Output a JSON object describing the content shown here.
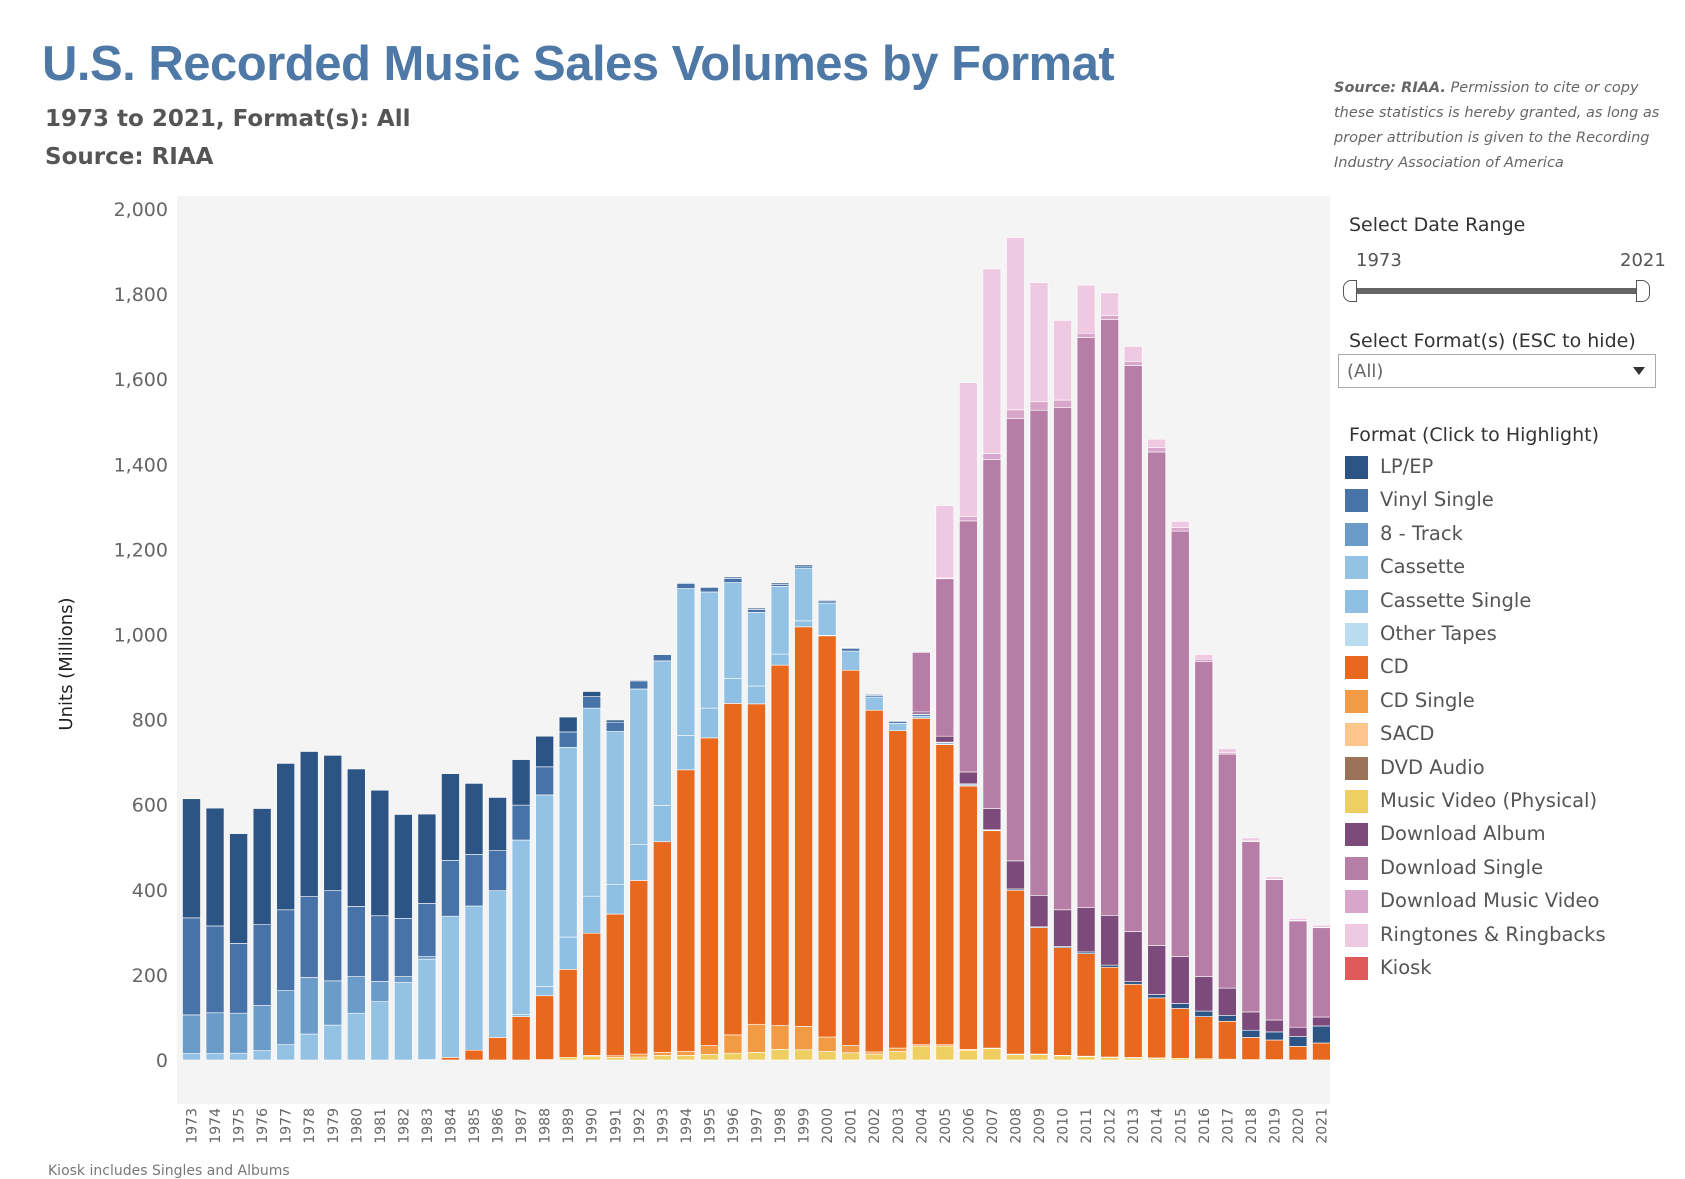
{
  "header": {
    "title": "U.S. Recorded Music Sales Volumes by Format",
    "subtitle": "1973 to 2021, Format(s): All",
    "source": "Source: RIAA"
  },
  "source_note": {
    "bold": "Source: RIAA.",
    "text": " Permission to cite or copy these statistics is hereby granted, as long as proper attribution is given to the Recording Industry Association of America"
  },
  "date_range": {
    "label": "Select Date Range",
    "start": "1973",
    "end": "2021"
  },
  "format_filter": {
    "label": "Select Format(s) (ESC to hide)",
    "value": "(All)"
  },
  "legend": {
    "title": "Format (Click to Highlight)",
    "items": [
      {
        "label": "LP/EP",
        "color": "#2c5585"
      },
      {
        "label": "Vinyl Single",
        "color": "#4773a8"
      },
      {
        "label": "8 - Track",
        "color": "#6a9bc9"
      },
      {
        "label": "Cassette",
        "color": "#93c2e4"
      },
      {
        "label": "Cassette Single",
        "color": "#8fbfe2"
      },
      {
        "label": "Other Tapes",
        "color": "#b9dcf0"
      },
      {
        "label": "CD",
        "color": "#e8691e"
      },
      {
        "label": "CD Single",
        "color": "#f39a45"
      },
      {
        "label": "SACD",
        "color": "#fbc58c"
      },
      {
        "label": "DVD Audio",
        "color": "#9a7258"
      },
      {
        "label": "Music Video (Physical)",
        "color": "#f0cf62"
      },
      {
        "label": "Download Album",
        "color": "#7d4a7c"
      },
      {
        "label": "Download Single",
        "color": "#b67ea6"
      },
      {
        "label": "Download Music Video",
        "color": "#d8a6cb"
      },
      {
        "label": "Ringtones & Ringbacks",
        "color": "#efc8e2"
      },
      {
        "label": "Kiosk",
        "color": "#e05a5a"
      }
    ]
  },
  "footnote": "Kiosk includes Singles and Albums",
  "chart_data": {
    "type": "bar",
    "stacked": true,
    "ylabel": "Units (Millions)",
    "ylim": [
      0,
      2000
    ],
    "yticks": [
      "0",
      "200",
      "400",
      "600",
      "800",
      "1,000",
      "1,200",
      "1,400",
      "1,600",
      "1,800",
      "2,000"
    ],
    "categories": [
      "1973",
      "1974",
      "1975",
      "1976",
      "1977",
      "1978",
      "1979",
      "1980",
      "1981",
      "1982",
      "1983",
      "1984",
      "1985",
      "1986",
      "1987",
      "1988",
      "1989",
      "1990",
      "1991",
      "1992",
      "1993",
      "1994",
      "1995",
      "1996",
      "1997",
      "1998",
      "1999",
      "2000",
      "2001",
      "2002",
      "2003",
      "2004",
      "2005",
      "2006",
      "2007",
      "2008",
      "2009",
      "2010",
      "2011",
      "2012",
      "2013",
      "2014",
      "2015",
      "2016",
      "2017",
      "2018",
      "2019",
      "2020",
      "2021"
    ],
    "series": [
      {
        "name": "Kiosk",
        "values": [
          0,
          0,
          0,
          0,
          0,
          0,
          0,
          0,
          0,
          0,
          0,
          0,
          0,
          0,
          0,
          0,
          0,
          0,
          0,
          0,
          0,
          0,
          0,
          0,
          0,
          0,
          0,
          0,
          0,
          0,
          0,
          0,
          0,
          0,
          0,
          0,
          0,
          0,
          0,
          0,
          0,
          0,
          0,
          0,
          0,
          0,
          0,
          0,
          0
        ]
      },
      {
        "name": "Music Video (Physical)",
        "values": [
          0,
          0,
          0,
          0,
          0,
          0,
          0,
          0,
          0,
          0,
          0,
          0,
          0,
          0,
          0,
          0,
          6,
          9,
          6,
          7,
          11,
          11,
          13,
          16,
          18,
          25,
          24,
          20,
          17,
          14,
          20,
          33,
          33,
          23,
          27,
          13,
          13,
          10,
          8,
          6,
          5,
          4,
          4,
          3,
          2,
          1,
          1,
          0,
          0
        ]
      },
      {
        "name": "DVD Audio",
        "values": [
          0,
          0,
          0,
          0,
          0,
          0,
          0,
          0,
          0,
          0,
          0,
          0,
          0,
          0,
          0,
          0,
          0,
          0,
          0,
          0,
          0,
          0,
          0,
          0,
          0,
          0,
          0,
          0,
          0,
          0,
          0,
          0,
          0,
          0,
          0,
          0,
          0,
          0,
          0,
          0,
          0,
          0,
          0,
          0,
          0,
          0,
          0,
          0,
          0
        ]
      },
      {
        "name": "SACD",
        "values": [
          0,
          0,
          0,
          0,
          0,
          0,
          0,
          0,
          0,
          0,
          0,
          0,
          0,
          0,
          0,
          0,
          0,
          0,
          0,
          0,
          0,
          0,
          0,
          0,
          0,
          0,
          0,
          0,
          0,
          0,
          0,
          0,
          0,
          0,
          0,
          0,
          0,
          0,
          0,
          0,
          0,
          0,
          0,
          0,
          0,
          0,
          0,
          0,
          0
        ]
      },
      {
        "name": "CD Single",
        "values": [
          0,
          0,
          0,
          0,
          0,
          0,
          0,
          0,
          0,
          0,
          0,
          0,
          0,
          0,
          0,
          1,
          0,
          2,
          4,
          7,
          7,
          9,
          21,
          43,
          66,
          56,
          55,
          34,
          17,
          5,
          8,
          3,
          3,
          2,
          1,
          1,
          1,
          1,
          1,
          1,
          1,
          1,
          0,
          0,
          0,
          0,
          0,
          0,
          0
        ]
      },
      {
        "name": "CD",
        "values": [
          0,
          0,
          0,
          0,
          0,
          0,
          0,
          0,
          0,
          0,
          1,
          6,
          23,
          53,
          102,
          150,
          207,
          287,
          333,
          408,
          495,
          662,
          723,
          779,
          753,
          847,
          939,
          943,
          882,
          803,
          746,
          767,
          705,
          619,
          511,
          385,
          297,
          253,
          241,
          211,
          172,
          141,
          117,
          99,
          89,
          52,
          46,
          32,
          40
        ]
      },
      {
        "name": "Other Tapes",
        "values": [
          0,
          0,
          0,
          0,
          0,
          0,
          0,
          0,
          0,
          0,
          0,
          0,
          0,
          0,
          0,
          0,
          0,
          0,
          0,
          0,
          0,
          0,
          0,
          0,
          0,
          0,
          0,
          0,
          0,
          0,
          0,
          0,
          0,
          0,
          0,
          0,
          0,
          0,
          0,
          0,
          0,
          0,
          0,
          0,
          0,
          0,
          0,
          0,
          0
        ]
      },
      {
        "name": "Cassette Single",
        "values": [
          0,
          0,
          0,
          0,
          0,
          0,
          0,
          0,
          0,
          0,
          0,
          0,
          0,
          0,
          5,
          22,
          76,
          87,
          69,
          84,
          85,
          81,
          70,
          59,
          42,
          26,
          14,
          1,
          0,
          0,
          0,
          0,
          0,
          0,
          0,
          0,
          0,
          0,
          0,
          0,
          0,
          0,
          0,
          0,
          0,
          0,
          0,
          0,
          0
        ]
      },
      {
        "name": "Cassette",
        "values": [
          15,
          15,
          16,
          22,
          36,
          61,
          82,
          110,
          137,
          182,
          236,
          332,
          339,
          345,
          410,
          450,
          446,
          442,
          360,
          366,
          340,
          345,
          273,
          225,
          173,
          159,
          124,
          76,
          45,
          31,
          17,
          5,
          2,
          1,
          0,
          0,
          0,
          0,
          0,
          0,
          0,
          0,
          0,
          0,
          0,
          0,
          0,
          0,
          0
        ]
      },
      {
        "name": "8 - Track",
        "values": [
          91,
          96,
          94,
          106,
          127,
          133,
          104,
          86,
          48,
          14,
          6,
          0,
          0,
          0,
          0,
          0,
          0,
          0,
          0,
          0,
          0,
          0,
          0,
          0,
          0,
          0,
          0,
          0,
          0,
          0,
          0,
          0,
          0,
          0,
          0,
          0,
          0,
          0,
          0,
          0,
          0,
          0,
          0,
          0,
          0,
          0,
          0,
          0,
          0
        ]
      },
      {
        "name": "Vinyl Single",
        "values": [
          228,
          204,
          164,
          190,
          190,
          190,
          212,
          165,
          154,
          137,
          125,
          131,
          121,
          94,
          82,
          66,
          36,
          27,
          22,
          19,
          15,
          12,
          10,
          10,
          7,
          5,
          5,
          5,
          6,
          4,
          4,
          4,
          3,
          3,
          1,
          0,
          0,
          0,
          0,
          0,
          0,
          0,
          0,
          0,
          0,
          0,
          0,
          0,
          0
        ]
      },
      {
        "name": "LP/EP",
        "values": [
          280,
          277,
          258,
          273,
          344,
          341,
          318,
          323,
          295,
          244,
          210,
          204,
          167,
          125,
          107,
          72,
          35,
          12,
          5,
          2,
          1,
          2,
          2,
          3,
          3,
          3,
          3,
          2,
          2,
          2,
          2,
          1,
          1,
          1,
          1,
          3,
          2,
          3,
          4,
          5,
          6,
          8,
          12,
          13,
          14,
          17,
          19,
          23,
          40
        ]
      },
      {
        "name": "Download Album",
        "values": [
          0,
          0,
          0,
          0,
          0,
          0,
          0,
          0,
          0,
          0,
          0,
          0,
          0,
          0,
          0,
          0,
          0,
          0,
          0,
          0,
          0,
          0,
          0,
          0,
          0,
          0,
          0,
          0,
          0,
          0,
          0,
          5,
          14,
          28,
          50,
          66,
          74,
          86,
          104,
          117,
          118,
          115,
          110,
          81,
          64,
          43,
          28,
          22,
          21
        ]
      },
      {
        "name": "Download Single",
        "values": [
          0,
          0,
          0,
          0,
          0,
          0,
          0,
          0,
          0,
          0,
          0,
          0,
          0,
          0,
          0,
          0,
          0,
          0,
          0,
          0,
          0,
          0,
          0,
          0,
          0,
          0,
          0,
          0,
          0,
          0,
          0,
          140,
          370,
          590,
          820,
          1040,
          1140,
          1180,
          1340,
          1400,
          1330,
          1160,
          1000,
          740,
          550,
          400,
          330,
          250,
          210
        ]
      },
      {
        "name": "Download Music Video",
        "values": [
          0,
          0,
          0,
          0,
          0,
          0,
          0,
          0,
          0,
          0,
          0,
          0,
          0,
          0,
          0,
          0,
          0,
          0,
          0,
          0,
          0,
          0,
          0,
          0,
          0,
          0,
          0,
          0,
          0,
          0,
          0,
          0,
          2,
          10,
          14,
          20,
          20,
          18,
          10,
          10,
          10,
          10,
          8,
          6,
          4,
          2,
          1,
          1,
          1
        ]
      },
      {
        "name": "Ringtones & Ringbacks",
        "values": [
          0,
          0,
          0,
          0,
          0,
          0,
          0,
          0,
          0,
          0,
          0,
          0,
          0,
          0,
          0,
          0,
          0,
          0,
          0,
          0,
          0,
          0,
          0,
          0,
          0,
          0,
          0,
          0,
          0,
          0,
          0,
          0,
          170,
          315,
          434,
          405,
          280,
          187,
          113,
          53,
          35,
          20,
          15,
          11,
          9,
          7,
          6,
          5,
          5
        ]
      }
    ]
  }
}
